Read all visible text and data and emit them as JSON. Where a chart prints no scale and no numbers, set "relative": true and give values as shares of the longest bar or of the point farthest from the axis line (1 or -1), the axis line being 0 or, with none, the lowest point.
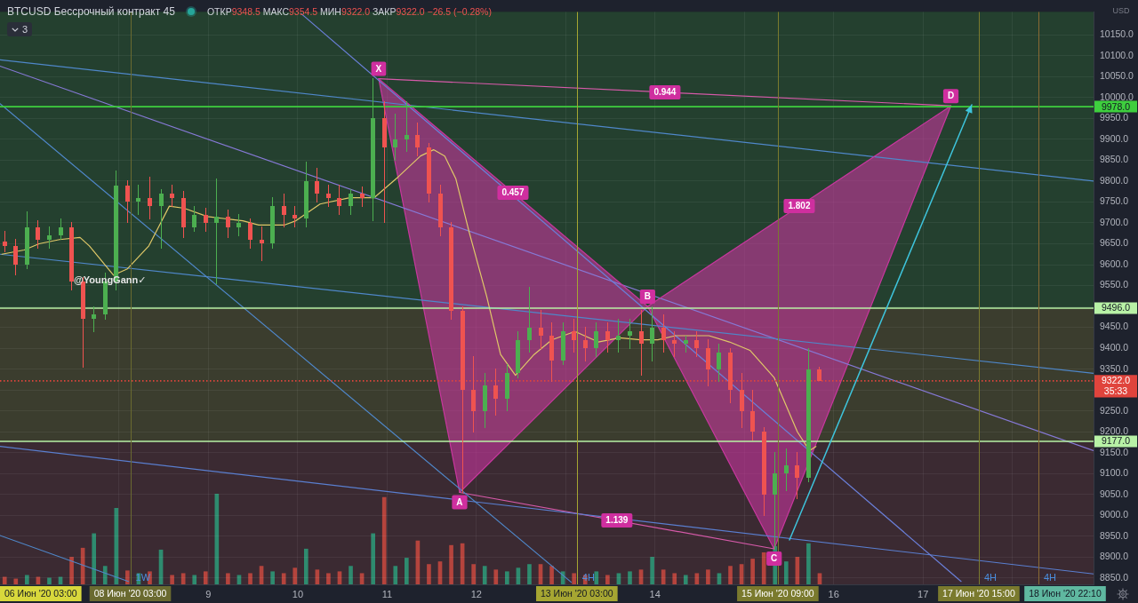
{
  "chart_data": [
    {
      "type": "candlestick",
      "title": "BTCUSD Бессрочный контракт 45",
      "subtitle": "ОТКР9348.5 МАКС9354.5 МИН9322.0 ЗАКР9322.0 −26.5 (−0.28%)",
      "ylabel": "USD",
      "x": [
        "2020-06-06T17:15",
        "2020-06-06T20:15",
        "2020-06-06T23:15",
        "2020-06-07T02:15",
        "2020-06-07T05:15",
        "2020-06-07T08:15",
        "2020-06-07T11:15",
        "2020-06-07T14:15",
        "2020-06-07T17:15",
        "2020-06-07T20:15",
        "2020-06-07T23:15",
        "2020-06-08T02:15",
        "2020-06-08T05:15",
        "2020-06-08T08:15",
        "2020-06-08T11:15",
        "2020-06-08T14:15",
        "2020-06-08T17:15",
        "2020-06-08T20:15",
        "2020-06-08T23:15",
        "2020-06-09T02:15",
        "2020-06-09T05:15",
        "2020-06-09T08:15",
        "2020-06-09T11:15",
        "2020-06-09T14:15",
        "2020-06-09T17:15",
        "2020-06-09T20:15",
        "2020-06-09T23:15",
        "2020-06-10T02:15",
        "2020-06-10T05:15",
        "2020-06-10T08:15",
        "2020-06-10T11:15",
        "2020-06-10T14:15",
        "2020-06-10T17:15",
        "2020-06-10T20:15",
        "2020-06-10T23:15",
        "2020-06-11T02:15",
        "2020-06-11T05:15",
        "2020-06-11T08:15",
        "2020-06-11T11:15",
        "2020-06-11T14:15",
        "2020-06-11T17:15",
        "2020-06-11T20:15",
        "2020-06-11T23:15",
        "2020-06-12T02:15",
        "2020-06-12T05:15",
        "2020-06-12T08:15",
        "2020-06-12T11:15",
        "2020-06-12T14:15",
        "2020-06-12T17:15",
        "2020-06-12T20:15",
        "2020-06-12T23:15",
        "2020-06-13T02:15",
        "2020-06-13T05:15",
        "2020-06-13T08:15",
        "2020-06-13T11:15",
        "2020-06-13T14:15",
        "2020-06-13T17:15",
        "2020-06-13T20:15",
        "2020-06-13T23:15",
        "2020-06-14T02:15",
        "2020-06-14T05:15",
        "2020-06-14T08:15",
        "2020-06-14T11:15",
        "2020-06-14T14:15",
        "2020-06-14T17:15",
        "2020-06-14T20:15",
        "2020-06-14T23:15",
        "2020-06-15T02:15",
        "2020-06-15T05:15",
        "2020-06-15T08:15",
        "2020-06-15T11:15",
        "2020-06-15T14:15",
        "2020-06-15T17:15",
        "2020-06-15T20:15"
      ],
      "ohlc": [
        [
          9655,
          9680,
          9630,
          9645
        ],
        [
          9645,
          9660,
          9575,
          9600
        ],
        [
          9600,
          9727,
          9590,
          9690
        ],
        [
          9690,
          9705,
          9640,
          9660
        ],
        [
          9660,
          9690,
          9640,
          9670
        ],
        [
          9670,
          9710,
          9660,
          9690
        ],
        [
          9690,
          9700,
          9540,
          9560
        ],
        [
          9560,
          9570,
          9355,
          9470
        ],
        [
          9470,
          9500,
          9440,
          9480
        ],
        [
          9480,
          9580,
          9470,
          9560
        ],
        [
          9560,
          9825,
          9540,
          9790
        ],
        [
          9790,
          9800,
          9700,
          9750
        ],
        [
          9750,
          9790,
          9720,
          9760
        ],
        [
          9760,
          9810,
          9710,
          9740
        ],
        [
          9740,
          9780,
          9640,
          9770
        ],
        [
          9770,
          9790,
          9740,
          9760
        ],
        [
          9760,
          9775,
          9665,
          9690
        ],
        [
          9690,
          9740,
          9680,
          9720
        ],
        [
          9720,
          9735,
          9680,
          9700
        ],
        [
          9700,
          9805,
          9555,
          9715
        ],
        [
          9715,
          9730,
          9665,
          9690
        ],
        [
          9690,
          9720,
          9670,
          9700
        ],
        [
          9700,
          9710,
          9640,
          9660
        ],
        [
          9660,
          9690,
          9610,
          9650
        ],
        [
          9650,
          9760,
          9640,
          9740
        ],
        [
          9740,
          9770,
          9690,
          9720
        ],
        [
          9720,
          9740,
          9690,
          9710
        ],
        [
          9710,
          9845,
          9690,
          9800
        ],
        [
          9800,
          9830,
          9750,
          9770
        ],
        [
          9770,
          9790,
          9740,
          9760
        ],
        [
          9760,
          9790,
          9720,
          9740
        ],
        [
          9740,
          9780,
          9720,
          9770
        ],
        [
          9770,
          9785,
          9740,
          9760
        ],
        [
          9760,
          10045,
          9705,
          9950
        ],
        [
          9950,
          9990,
          9700,
          9880
        ],
        [
          9880,
          9960,
          9850,
          9900
        ],
        [
          9900,
          9990,
          9870,
          9910
        ],
        [
          9910,
          9940,
          9860,
          9880
        ],
        [
          9880,
          9890,
          9750,
          9770
        ],
        [
          9770,
          9790,
          9670,
          9690
        ],
        [
          9690,
          9700,
          9470,
          9490
        ],
        [
          9490,
          9500,
          9055,
          9300
        ],
        [
          9300,
          9380,
          9200,
          9250
        ],
        [
          9250,
          9340,
          9210,
          9310
        ],
        [
          9310,
          9350,
          9240,
          9280
        ],
        [
          9280,
          9360,
          9250,
          9340
        ],
        [
          9340,
          9440,
          9330,
          9420
        ],
        [
          9420,
          9545,
          9390,
          9450
        ],
        [
          9450,
          9490,
          9400,
          9430
        ],
        [
          9430,
          9460,
          9320,
          9370
        ],
        [
          9370,
          9460,
          9360,
          9440
        ],
        [
          9440,
          9470,
          9390,
          9420
        ],
        [
          9420,
          9450,
          9370,
          9400
        ],
        [
          9400,
          9460,
          9380,
          9440
        ],
        [
          9440,
          9460,
          9390,
          9420
        ],
        [
          9420,
          9470,
          9390,
          9430
        ],
        [
          9430,
          9470,
          9400,
          9440
        ],
        [
          9440,
          9490,
          9335,
          9410
        ],
        [
          9410,
          9500,
          9370,
          9450
        ],
        [
          9450,
          9480,
          9390,
          9420
        ],
        [
          9420,
          9440,
          9380,
          9410
        ],
        [
          9410,
          9430,
          9390,
          9420
        ],
        [
          9420,
          9440,
          9380,
          9400
        ],
        [
          9400,
          9420,
          9310,
          9350
        ],
        [
          9350,
          9410,
          9320,
          9390
        ],
        [
          9390,
          9400,
          9270,
          9300
        ],
        [
          9300,
          9340,
          9210,
          9250
        ],
        [
          9250,
          9300,
          9180,
          9200
        ],
        [
          9200,
          9210,
          9000,
          9050
        ],
        [
          9050,
          9150,
          8920,
          9100
        ],
        [
          9100,
          9160,
          9060,
          9120
        ],
        [
          9120,
          9150,
          9040,
          9090
        ],
        [
          9090,
          9400,
          9080,
          9350
        ],
        [
          9348.5,
          9354.5,
          9322,
          9322
        ]
      ],
      "colors": [
        "#ef5350",
        "#ef5350",
        "#4caf50",
        "#ef5350",
        "#4caf50",
        "#4caf50",
        "#ef5350",
        "#ef5350",
        "#4caf50",
        "#4caf50",
        "#4caf50",
        "#ef5350",
        "#4caf50",
        "#ef5350",
        "#4caf50",
        "#ef5350",
        "#ef5350",
        "#4caf50",
        "#ef5350",
        "#4caf50",
        "#ef5350",
        "#4caf50",
        "#ef5350",
        "#ef5350",
        "#4caf50",
        "#ef5350",
        "#ef5350",
        "#4caf50",
        "#ef5350",
        "#ef5350",
        "#ef5350",
        "#4caf50",
        "#ef5350",
        "#4caf50",
        "#ef5350",
        "#4caf50",
        "#4caf50",
        "#ef5350",
        "#ef5350",
        "#ef5350",
        "#ef5350",
        "#ef5350",
        "#ef5350",
        "#4caf50",
        "#ef5350",
        "#4caf50",
        "#4caf50",
        "#4caf50",
        "#ef5350",
        "#ef5350",
        "#4caf50",
        "#ef5350",
        "#ef5350",
        "#4caf50",
        "#ef5350",
        "#4caf50",
        "#4caf50",
        "#ef5350",
        "#4caf50",
        "#ef5350",
        "#ef5350",
        "#4caf50",
        "#ef5350",
        "#ef5350",
        "#4caf50",
        "#ef5350",
        "#ef5350",
        "#ef5350",
        "#ef5350",
        "#4caf50",
        "#4caf50",
        "#ef5350",
        "#4caf50",
        "#ef5350"
      ],
      "series": [
        {
          "type": "area",
          "color": "#c8379e",
          "x": [
            "2020-06-10T21:45",
            "2020-06-11T19:30",
            "2020-06-13T22:00"
          ],
          "values": [
            10045,
            9055,
            9500
          ]
        },
        {
          "type": "area",
          "color": "#c8379e",
          "x": [
            "2020-06-13T22:00",
            "2020-06-15T08:00",
            "2020-06-17T07:30"
          ],
          "values": [
            9500,
            8920,
            9980
          ]
        },
        {
          "type": "line",
          "color": "#d65aa9",
          "x": [
            "2020-06-10T21:45",
            "2020-06-17T07:30"
          ],
          "values": [
            10045,
            9980
          ]
        },
        {
          "type": "line",
          "color": "#d65aa9",
          "x": [
            "2020-06-11T19:30",
            "2020-06-15T08:00"
          ],
          "values": [
            9055,
            8920
          ]
        },
        {
          "type": "line",
          "color": "#4f87c9",
          "x": [
            "2020-06-06T16:00",
            "2020-06-18T21:50"
          ],
          "values": [
            10090,
            9800
          ]
        },
        {
          "type": "line",
          "color": "#8679d6",
          "x": [
            "2020-06-06T16:00",
            "2020-06-18T21:50"
          ],
          "values": [
            10075,
            9155
          ]
        },
        {
          "type": "line",
          "color": "#4f87c9",
          "x": [
            "2020-06-06T16:00",
            "2020-06-18T21:50"
          ],
          "values": [
            9625,
            9340
          ]
        },
        {
          "type": "line",
          "color": "#5a7fd0",
          "x": [
            "2020-06-06T16:00",
            "2020-06-18T21:50"
          ],
          "values": [
            9165,
            8860
          ]
        },
        {
          "type": "line",
          "color": "#4f87c9",
          "x": [
            "2020-06-06T16:00",
            "2020-06-13T01:30"
          ],
          "values": [
            9985,
            8840
          ]
        },
        {
          "type": "line",
          "color": "#6a7fd8",
          "x": [
            "2020-06-10T01:00",
            "2020-06-17T10:15"
          ],
          "values": [
            10200,
            8842
          ]
        },
        {
          "type": "line",
          "color": "#4f87c9",
          "x": [
            "2020-06-06T16:00",
            "2020-06-08T02:30"
          ],
          "values": [
            8952,
            8842
          ]
        },
        {
          "type": "line",
          "color": "#e0c868",
          "x": [
            "2020-06-06T16:30",
            "2020-06-06T22:30",
            "2020-06-07T02:30",
            "2020-06-07T08:00",
            "2020-06-07T13:30",
            "2020-06-07T16:00",
            "2020-06-07T22:30",
            "2020-06-08T02:15",
            "2020-06-08T08:00",
            "2020-06-08T13:30",
            "2020-06-08T17:30",
            "2020-06-08T23:45",
            "2020-06-09T04:30",
            "2020-06-09T09:15",
            "2020-06-09T13:30",
            "2020-06-09T20:30",
            "2020-06-09T23:30",
            "2020-06-10T06:00",
            "2020-06-10T14:00",
            "2020-06-10T20:30",
            "2020-06-11T03:00",
            "2020-06-11T09:00",
            "2020-06-11T12:30",
            "2020-06-11T15:30",
            "2020-06-11T18:30",
            "2020-06-11T22:00",
            "2020-06-12T02:45",
            "2020-06-12T06:30",
            "2020-06-12T10:30",
            "2020-06-12T15:30",
            "2020-06-12T20:15",
            "2020-06-13T02:30",
            "2020-06-13T08:45",
            "2020-06-13T14:30",
            "2020-06-13T20:00",
            "2020-06-14T00:45",
            "2020-06-14T05:30",
            "2020-06-14T14:30",
            "2020-06-14T20:00",
            "2020-06-15T01:30",
            "2020-06-15T08:00",
            "2020-06-15T14:15",
            "2020-06-15T17:30",
            "2020-06-15T19:15"
          ],
          "values": [
            9625,
            9635,
            9650,
            9660,
            9665,
            9645,
            9575,
            9590,
            9645,
            9740,
            9735,
            9715,
            9710,
            9705,
            9695,
            9695,
            9705,
            9745,
            9760,
            9760,
            9810,
            9860,
            9875,
            9860,
            9805,
            9680,
            9525,
            9385,
            9335,
            9385,
            9420,
            9440,
            9415,
            9425,
            9420,
            9420,
            9430,
            9430,
            9415,
            9395,
            9330,
            9200,
            9155,
            9165
          ]
        }
      ],
      "xlim": [
        "2020-06-06T16:00",
        "2020-06-18T21:50"
      ],
      "xticks": [
        {
          "value": "2020-06-08",
          "label": null
        },
        {
          "value": "2020-06-09",
          "label": "9"
        },
        {
          "value": "2020-06-10",
          "label": "10"
        },
        {
          "value": "2020-06-11",
          "label": "11"
        },
        {
          "value": "2020-06-12",
          "label": "12"
        },
        {
          "value": "2020-06-13",
          "label": null
        },
        {
          "value": "2020-06-14",
          "label": "14"
        },
        {
          "value": "2020-06-15",
          "label": null
        },
        {
          "value": "2020-06-16",
          "label": "16"
        },
        {
          "value": "2020-06-17",
          "label": "17"
        },
        {
          "value": "2020-06-18",
          "label": null
        }
      ],
      "ylim": [
        8835,
        10205
      ],
      "yticks": [
        {
          "value": 8850,
          "label": "8850.0"
        },
        {
          "value": 8900,
          "label": "8900.0"
        },
        {
          "value": 8950,
          "label": "8950.0"
        },
        {
          "value": 9000,
          "label": "9000.0"
        },
        {
          "value": 9050,
          "label": "9050.0"
        },
        {
          "value": 9100,
          "label": "9100.0"
        },
        {
          "value": 9150,
          "label": "9150.0"
        },
        {
          "value": 9200,
          "label": "9200.0"
        },
        {
          "value": 9250,
          "label": "9250.0"
        },
        {
          "value": 9300,
          "label": null
        },
        {
          "value": 9350,
          "label": "9350.0"
        },
        {
          "value": 9400,
          "label": "9400.0"
        },
        {
          "value": 9450,
          "label": "9450.0"
        },
        {
          "value": 9500,
          "label": null
        },
        {
          "value": 9550,
          "label": "9550.0"
        },
        {
          "value": 9600,
          "label": "9600.0"
        },
        {
          "value": 9650,
          "label": "9650.0"
        },
        {
          "value": 9700,
          "label": "9700.0"
        },
        {
          "value": 9750,
          "label": "9750.0"
        },
        {
          "value": 9800,
          "label": "9800.0"
        },
        {
          "value": 9850,
          "label": "9850.0"
        },
        {
          "value": 9900,
          "label": "9900.0"
        },
        {
          "value": 9950,
          "label": "9950.0"
        },
        {
          "value": 10000,
          "label": "10000.0"
        },
        {
          "value": 10050,
          "label": "10050.0"
        },
        {
          "value": 10100,
          "label": "10100.0"
        },
        {
          "value": 10150,
          "label": "10150.0"
        }
      ],
      "grid": true,
      "bands": [
        {
          "axis": "y",
          "from": 9496,
          "to": 10205,
          "color": "#24402f"
        },
        {
          "axis": "y",
          "from": 9177,
          "to": 9496,
          "color": "#3b3d2e"
        },
        {
          "axis": "y",
          "from": 8835,
          "to": 9177,
          "color": "#3b2a32"
        }
      ],
      "ref_lines": [
        {
          "axis": "y",
          "value": 9978,
          "label": "9978.0",
          "color": "#3ecf3e"
        },
        {
          "axis": "y",
          "value": 9496,
          "label": "9496.0",
          "color": "#b8f2a6"
        },
        {
          "axis": "y",
          "value": 9177,
          "label": "9177.0",
          "color": "#b8f2a6"
        },
        {
          "axis": "y",
          "value": 9322,
          "label": "9322.0",
          "color": "#e0443c",
          "line_style": "dotted"
        },
        {
          "axis": "x",
          "value": "2020-06-08T03:00",
          "label": "08 Июн '20 03:00",
          "color": "#6a6a30"
        },
        {
          "axis": "x",
          "value": "2020-06-13T03:00",
          "label": "13 Июн '20 03:00",
          "color": "#a6a632"
        },
        {
          "axis": "x",
          "value": "2020-06-15T09:00",
          "label": "15 Июн '20 09:00",
          "color": "#7a7a2e"
        },
        {
          "axis": "x",
          "value": "2020-06-17T15:00",
          "label": "17 Июн '20 15:00",
          "color": "#7a7a2e"
        },
        {
          "axis": "x",
          "value": "2020-06-18T07:00",
          "label": null,
          "color": "#8a6a34"
        }
      ],
      "annotations": [
        {
          "text": "X",
          "x": "2020-06-10T21:45",
          "y": 10045
        },
        {
          "text": "A",
          "x": "2020-06-11T19:30",
          "y": 9055
        },
        {
          "text": "B",
          "x": "2020-06-13T22:00",
          "y": 9500
        },
        {
          "text": "C",
          "x": "2020-06-15T08:00",
          "y": 8920
        },
        {
          "text": "D",
          "x": "2020-06-17T07:30",
          "y": 9980
        },
        {
          "text": "0.457",
          "x": "2020-06-12T09:50",
          "y": 9772
        },
        {
          "text": "1.802",
          "x": "2020-06-15T14:45",
          "y": 9740
        },
        {
          "text": "0.944",
          "x": "2020-06-14T02:40",
          "y": 10012
        },
        {
          "text": "1.139",
          "x": "2020-06-13T13:45",
          "y": 8988
        },
        {
          "text": "1W",
          "x": "2020-06-08T03:00",
          "y": 8850
        },
        {
          "text": "4H",
          "x": "2020-06-13T03:00",
          "y": 8850
        },
        {
          "text": "4H",
          "x": "2020-06-17T15:00",
          "y": 8850
        },
        {
          "text": "4H",
          "x": "2020-06-18T07:00",
          "y": 8850
        },
        "@YoungGann✓",
        "3",
        "35:33",
        "06 Июн '20 03:00",
        "18 Июн '20 22:10"
      ]
    },
    {
      "type": "bar",
      "relative": true,
      "tick_labels": false,
      "x": [
        "2020-06-06T17:15",
        "2020-06-06T20:15",
        "2020-06-06T23:15",
        "2020-06-07T02:15",
        "2020-06-07T05:15",
        "2020-06-07T08:15",
        "2020-06-07T11:15",
        "2020-06-07T14:15",
        "2020-06-07T17:15",
        "2020-06-07T20:15",
        "2020-06-07T23:15",
        "2020-06-08T02:15",
        "2020-06-08T05:15",
        "2020-06-08T08:15",
        "2020-06-08T11:15",
        "2020-06-08T14:15",
        "2020-06-08T17:15",
        "2020-06-08T20:15",
        "2020-06-08T23:15",
        "2020-06-09T02:15",
        "2020-06-09T05:15",
        "2020-06-09T08:15",
        "2020-06-09T11:15",
        "2020-06-09T14:15",
        "2020-06-09T17:15",
        "2020-06-09T20:15",
        "2020-06-09T23:15",
        "2020-06-10T02:15",
        "2020-06-10T05:15",
        "2020-06-10T08:15",
        "2020-06-10T11:15",
        "2020-06-10T14:15",
        "2020-06-10T17:15",
        "2020-06-10T20:15",
        "2020-06-10T23:15",
        "2020-06-11T02:15",
        "2020-06-11T05:15",
        "2020-06-11T08:15",
        "2020-06-11T11:15",
        "2020-06-11T14:15",
        "2020-06-11T17:15",
        "2020-06-11T20:15",
        "2020-06-11T23:15",
        "2020-06-12T02:15",
        "2020-06-12T05:15",
        "2020-06-12T08:15",
        "2020-06-12T11:15",
        "2020-06-12T14:15",
        "2020-06-12T17:15",
        "2020-06-12T20:15",
        "2020-06-12T23:15",
        "2020-06-13T02:15",
        "2020-06-13T05:15",
        "2020-06-13T08:15",
        "2020-06-13T11:15",
        "2020-06-13T14:15",
        "2020-06-13T17:15",
        "2020-06-13T20:15",
        "2020-06-13T23:15",
        "2020-06-14T02:15",
        "2020-06-14T05:15",
        "2020-06-14T08:15",
        "2020-06-14T11:15",
        "2020-06-14T14:15",
        "2020-06-14T17:15",
        "2020-06-14T20:15",
        "2020-06-14T23:15",
        "2020-06-15T02:15",
        "2020-06-15T05:15",
        "2020-06-15T08:15",
        "2020-06-15T11:15",
        "2020-06-15T14:15",
        "2020-06-15T17:15",
        "2020-06-15T20:15"
      ],
      "values": [
        0.08,
        0.06,
        0.1,
        0.08,
        0.07,
        0.08,
        0.3,
        0.4,
        0.56,
        0.2,
        0.84,
        0.15,
        0.12,
        0.14,
        0.38,
        0.1,
        0.12,
        0.1,
        0.14,
        1,
        0.12,
        0.1,
        0.12,
        0.2,
        0.14,
        0.12,
        0.18,
        0.39,
        0.16,
        0.12,
        0.14,
        0.2,
        0.12,
        0.56,
        0.96,
        0.2,
        0.29,
        0.48,
        0.22,
        0.25,
        0.43,
        0.45,
        0.22,
        0.2,
        0.16,
        0.14,
        0.18,
        0.22,
        0.22,
        0.2,
        0.14,
        0.12,
        0.1,
        0.14,
        0.1,
        0.12,
        0.14,
        0.16,
        0.3,
        0.16,
        0.12,
        0.1,
        0.12,
        0.16,
        0.12,
        0.2,
        0.22,
        0.28,
        0.35,
        0.42,
        0.25,
        0.3,
        0.45,
        0.12
      ],
      "colors": [
        "#b5443d",
        "#b5443d",
        "#2e8b6f",
        "#b5443d",
        "#2e8b6f",
        "#2e8b6f",
        "#b5443d",
        "#b5443d",
        "#2e8b6f",
        "#2e8b6f",
        "#2e8b6f",
        "#b5443d",
        "#2e8b6f",
        "#b5443d",
        "#2e8b6f",
        "#b5443d",
        "#b5443d",
        "#2e8b6f",
        "#b5443d",
        "#2e8b6f",
        "#b5443d",
        "#2e8b6f",
        "#b5443d",
        "#b5443d",
        "#2e8b6f",
        "#b5443d",
        "#b5443d",
        "#2e8b6f",
        "#b5443d",
        "#b5443d",
        "#b5443d",
        "#2e8b6f",
        "#b5443d",
        "#2e8b6f",
        "#b5443d",
        "#2e8b6f",
        "#2e8b6f",
        "#b5443d",
        "#b5443d",
        "#b5443d",
        "#b5443d",
        "#b5443d",
        "#b5443d",
        "#2e8b6f",
        "#b5443d",
        "#2e8b6f",
        "#2e8b6f",
        "#2e8b6f",
        "#b5443d",
        "#b5443d",
        "#2e8b6f",
        "#b5443d",
        "#b5443d",
        "#2e8b6f",
        "#b5443d",
        "#2e8b6f",
        "#2e8b6f",
        "#b5443d",
        "#2e8b6f",
        "#b5443d",
        "#b5443d",
        "#2e8b6f",
        "#b5443d",
        "#b5443d",
        "#2e8b6f",
        "#b5443d",
        "#b5443d",
        "#b5443d",
        "#b5443d",
        "#2e8b6f",
        "#2e8b6f",
        "#b5443d",
        "#2e8b6f",
        "#b5443d"
      ],
      "xlim": [
        "2020-06-06T16:00",
        "2020-06-18T21:50"
      ]
    }
  ]
}
